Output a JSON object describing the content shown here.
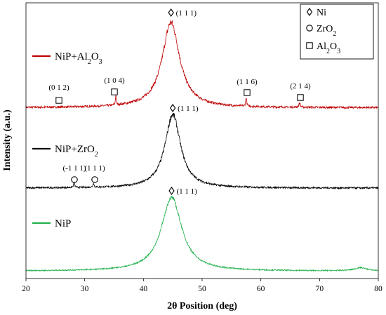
{
  "chart_data": {
    "type": "line",
    "xlabel": "2θ Position (deg)",
    "ylabel": "Intensity (a.u.)",
    "xlim": [
      20,
      80
    ],
    "xticks": [
      20,
      30,
      40,
      50,
      60,
      70,
      80
    ],
    "y_ticks_shown": false,
    "grid": false,
    "legend_position": "top-right",
    "markers": {
      "Ni": "diamond",
      "ZrO2": "circle",
      "Al2O3": "square"
    },
    "legend": [
      {
        "key": "Ni",
        "marker": "diamond",
        "label": "Ni"
      },
      {
        "key": "ZrO2",
        "marker": "circle",
        "label": "ZrO",
        "sub": "2",
        "rest": ""
      },
      {
        "key": "Al2O3",
        "marker": "square",
        "label": "Al",
        "sub": "2",
        "rest": "O",
        "sub2": "3"
      }
    ],
    "series": [
      {
        "id": "nip-al2o3",
        "label_main": "NiP+Al",
        "label_sub1": "2",
        "label_mid": "O",
        "label_sub2": "3",
        "color": "#c00000",
        "offset": 2.0,
        "baseline": 0.05,
        "noise": 0.01,
        "peaks": [
          {
            "x": 44.7,
            "height": 0.95,
            "width": 3.6
          },
          {
            "x": 35.3,
            "height": 0.12,
            "width": 0.15
          },
          {
            "x": 57.5,
            "height": 0.1,
            "width": 0.2
          },
          {
            "x": 66.6,
            "height": 0.05,
            "width": 0.25
          }
        ],
        "annotations": [
          {
            "text": "(1 1 1)",
            "x": 44.7,
            "marker": "diamond"
          },
          {
            "text": "(0 1 2)",
            "x": 25.7,
            "marker": "square"
          },
          {
            "text": "(1 0 4)",
            "x": 35.3,
            "marker": "square"
          },
          {
            "text": "(1 1 6)",
            "x": 57.5,
            "marker": "square"
          },
          {
            "text": "(2 1 4)",
            "x": 66.6,
            "marker": "square"
          }
        ]
      },
      {
        "id": "nip-zro2",
        "label_main": "NiP+ZrO",
        "label_sub1": "2",
        "color": "#000000",
        "offset": 1.0,
        "baseline": 0.03,
        "noise": 0.009,
        "peaks": [
          {
            "x": 45.0,
            "height": 0.82,
            "width": 3.2
          },
          {
            "x": 28.2,
            "height": 0.07,
            "width": 0.2
          },
          {
            "x": 31.5,
            "height": 0.05,
            "width": 0.2
          }
        ],
        "annotations": [
          {
            "text": "(1 1 1)",
            "x": 45.0,
            "marker": "diamond"
          },
          {
            "text": "(-1 1 1)",
            "x": 28.2,
            "marker": "circle"
          },
          {
            "text": "(1 1 1)",
            "x": 31.5,
            "marker": "circle"
          }
        ]
      },
      {
        "id": "nip",
        "label_main": "NiP",
        "color": "#22b14c",
        "offset": 0.0,
        "baseline": 0.02,
        "noise": 0.006,
        "peaks": [
          {
            "x": 44.8,
            "height": 0.82,
            "width": 4.2
          },
          {
            "x": 77.0,
            "height": 0.035,
            "width": 2.5
          }
        ],
        "annotations": [
          {
            "text": "(1 1 1)",
            "x": 44.8,
            "marker": "diamond"
          }
        ]
      }
    ]
  }
}
